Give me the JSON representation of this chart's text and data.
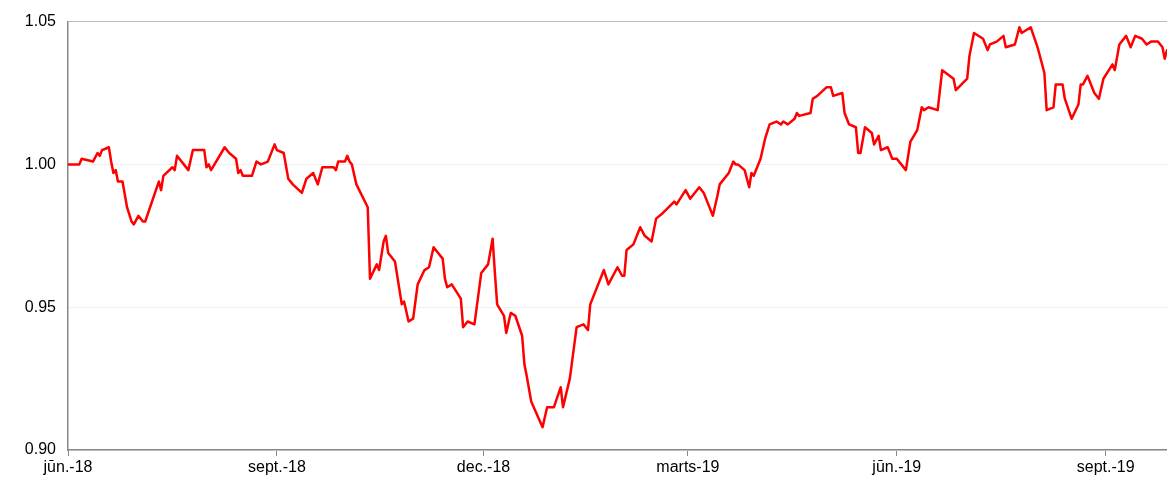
{
  "chart_data": {
    "type": "line",
    "marker": "none",
    "grid": "y",
    "xlim": [
      "2018-06-01",
      "2019-09-28"
    ],
    "xticks": [
      {
        "value": "2018-06-01",
        "label": "jūn.-18"
      },
      {
        "value": "2018-09-01",
        "label": "sept.-18"
      },
      {
        "value": "2018-12-01",
        "label": "dec.-18"
      },
      {
        "value": "2019-03-01",
        "label": "marts-19"
      },
      {
        "value": "2019-06-01",
        "label": "jūn.-19"
      },
      {
        "value": "2019-09-01",
        "label": "sept.-19"
      }
    ],
    "ylim": [
      0.9,
      1.05
    ],
    "yticks": [
      {
        "value": 0.9,
        "label": "0.90"
      },
      {
        "value": 0.95,
        "label": "0.95"
      },
      {
        "value": 1.0,
        "label": "1.00"
      },
      {
        "value": 1.05,
        "label": "1.05"
      }
    ],
    "x": [
      "2018-06-01",
      "2018-06-06",
      "2018-06-07",
      "2018-06-12",
      "2018-06-14",
      "2018-06-15",
      "2018-06-16",
      "2018-06-19",
      "2018-06-20",
      "2018-06-21",
      "2018-06-22",
      "2018-06-23",
      "2018-06-25",
      "2018-06-27",
      "2018-06-29",
      "2018-06-30",
      "2018-07-02",
      "2018-07-04",
      "2018-07-05",
      "2018-07-11",
      "2018-07-12",
      "2018-07-13",
      "2018-07-17",
      "2018-07-18",
      "2018-07-19",
      "2018-07-22",
      "2018-07-24",
      "2018-07-26",
      "2018-07-31",
      "2018-08-01",
      "2018-08-02",
      "2018-08-03",
      "2018-08-09",
      "2018-08-11",
      "2018-08-14",
      "2018-08-15",
      "2018-08-16",
      "2018-08-17",
      "2018-08-21",
      "2018-08-23",
      "2018-08-25",
      "2018-08-28",
      "2018-08-31",
      "2018-09-01",
      "2018-09-04",
      "2018-09-06",
      "2018-09-08",
      "2018-09-12",
      "2018-09-14",
      "2018-09-17",
      "2018-09-19",
      "2018-09-21",
      "2018-09-26",
      "2018-09-27",
      "2018-09-28",
      "2018-10-01",
      "2018-10-02",
      "2018-10-03",
      "2018-10-04",
      "2018-10-06",
      "2018-10-11",
      "2018-10-12",
      "2018-10-15",
      "2018-10-16",
      "2018-10-18",
      "2018-10-19",
      "2018-10-20",
      "2018-10-23",
      "2018-10-26",
      "2018-10-27",
      "2018-10-29",
      "2018-10-31",
      "2018-11-02",
      "2018-11-05",
      "2018-11-07",
      "2018-11-09",
      "2018-11-13",
      "2018-11-14",
      "2018-11-15",
      "2018-11-17",
      "2018-11-21",
      "2018-11-22",
      "2018-11-24",
      "2018-11-27",
      "2018-11-28",
      "2018-11-30",
      "2018-12-03",
      "2018-12-05",
      "2018-12-06",
      "2018-12-07",
      "2018-12-10",
      "2018-12-11",
      "2018-12-13",
      "2018-12-15",
      "2018-12-18",
      "2018-12-19",
      "2018-12-20",
      "2018-12-22",
      "2018-12-27",
      "2018-12-29",
      "2019-01-01",
      "2019-01-04",
      "2019-01-05",
      "2019-01-08",
      "2019-01-11",
      "2019-01-14",
      "2019-01-16",
      "2019-01-17",
      "2019-01-23",
      "2019-01-25",
      "2019-01-29",
      "2019-01-31",
      "2019-02-01",
      "2019-02-02",
      "2019-02-05",
      "2019-02-08",
      "2019-02-10",
      "2019-02-13",
      "2019-02-15",
      "2019-02-18",
      "2019-02-23",
      "2019-02-24",
      "2019-02-28",
      "2019-03-02",
      "2019-03-06",
      "2019-03-08",
      "2019-03-10",
      "2019-03-12",
      "2019-03-14",
      "2019-03-15",
      "2019-03-19",
      "2019-03-21",
      "2019-03-22",
      "2019-03-23",
      "2019-03-26",
      "2019-03-28",
      "2019-03-29",
      "2019-03-30",
      "2019-04-02",
      "2019-04-04",
      "2019-04-06",
      "2019-04-09",
      "2019-04-11",
      "2019-04-12",
      "2019-04-14",
      "2019-04-17",
      "2019-04-18",
      "2019-04-19",
      "2019-04-24",
      "2019-04-25",
      "2019-04-27",
      "2019-05-01",
      "2019-05-03",
      "2019-05-04",
      "2019-05-08",
      "2019-05-09",
      "2019-05-11",
      "2019-05-14",
      "2019-05-15",
      "2019-05-16",
      "2019-05-18",
      "2019-05-21",
      "2019-05-22",
      "2019-05-24",
      "2019-05-25",
      "2019-05-28",
      "2019-05-30",
      "2019-06-01",
      "2019-06-05",
      "2019-06-07",
      "2019-06-10",
      "2019-06-12",
      "2019-06-13",
      "2019-06-15",
      "2019-06-19",
      "2019-06-21",
      "2019-06-26",
      "2019-06-27",
      "2019-07-02",
      "2019-07-03",
      "2019-07-05",
      "2019-07-09",
      "2019-07-11",
      "2019-07-12",
      "2019-07-15",
      "2019-07-18",
      "2019-07-19",
      "2019-07-23",
      "2019-07-25",
      "2019-07-26",
      "2019-07-30",
      "2019-08-02",
      "2019-08-05",
      "2019-08-06",
      "2019-08-09",
      "2019-08-10",
      "2019-08-13",
      "2019-08-14",
      "2019-08-17",
      "2019-08-20",
      "2019-08-21",
      "2019-08-22",
      "2019-08-24",
      "2019-08-27",
      "2019-08-29",
      "2019-08-31",
      "2019-09-04",
      "2019-09-05",
      "2019-09-07",
      "2019-09-10",
      "2019-09-12",
      "2019-09-14",
      "2019-09-17",
      "2019-09-19",
      "2019-09-21",
      "2019-09-24",
      "2019-09-26",
      "2019-09-27",
      "2019-09-28"
    ],
    "series": [
      {
        "color": "#ff0000",
        "values": [
          1.0,
          1.0,
          1.002,
          1.001,
          1.004,
          1.003,
          1.005,
          1.006,
          1.001,
          0.997,
          0.998,
          0.994,
          0.994,
          0.985,
          0.98,
          0.979,
          0.982,
          0.98,
          0.98,
          0.994,
          0.991,
          0.996,
          0.999,
          0.998,
          1.003,
          1.0,
          0.998,
          1.005,
          1.005,
          0.999,
          1.0,
          0.998,
          1.006,
          1.004,
          1.002,
          0.997,
          0.998,
          0.996,
          0.996,
          1.001,
          1.0,
          1.001,
          1.007,
          1.005,
          1.004,
          0.995,
          0.993,
          0.99,
          0.995,
          0.997,
          0.993,
          0.999,
          0.999,
          0.998,
          1.001,
          1.001,
          1.003,
          1.001,
          1.0,
          0.993,
          0.985,
          0.96,
          0.965,
          0.963,
          0.973,
          0.975,
          0.969,
          0.966,
          0.951,
          0.952,
          0.945,
          0.946,
          0.958,
          0.963,
          0.964,
          0.971,
          0.967,
          0.96,
          0.957,
          0.958,
          0.953,
          0.943,
          0.945,
          0.944,
          0.95,
          0.962,
          0.965,
          0.974,
          0.962,
          0.951,
          0.947,
          0.941,
          0.948,
          0.947,
          0.94,
          0.93,
          0.926,
          0.917,
          0.908,
          0.915,
          0.915,
          0.922,
          0.915,
          0.925,
          0.943,
          0.944,
          0.942,
          0.951,
          0.963,
          0.958,
          0.964,
          0.961,
          0.961,
          0.97,
          0.972,
          0.978,
          0.975,
          0.973,
          0.981,
          0.983,
          0.987,
          0.986,
          0.991,
          0.988,
          0.992,
          0.99,
          0.986,
          0.982,
          0.989,
          0.993,
          0.997,
          1.001,
          1.0,
          1.0,
          0.998,
          0.992,
          0.997,
          0.996,
          1.002,
          1.009,
          1.014,
          1.015,
          1.014,
          1.015,
          1.014,
          1.016,
          1.018,
          1.017,
          1.018,
          1.023,
          1.024,
          1.027,
          1.027,
          1.024,
          1.025,
          1.018,
          1.014,
          1.013,
          1.004,
          1.004,
          1.013,
          1.011,
          1.007,
          1.01,
          1.005,
          1.006,
          1.002,
          1.002,
          0.998,
          1.008,
          1.012,
          1.02,
          1.019,
          1.02,
          1.019,
          1.033,
          1.03,
          1.026,
          1.03,
          1.038,
          1.046,
          1.044,
          1.04,
          1.042,
          1.043,
          1.045,
          1.041,
          1.042,
          1.048,
          1.046,
          1.048,
          1.041,
          1.032,
          1.019,
          1.02,
          1.028,
          1.028,
          1.023,
          1.016,
          1.021,
          1.028,
          1.028,
          1.031,
          1.025,
          1.023,
          1.03,
          1.035,
          1.033,
          1.042,
          1.045,
          1.041,
          1.045,
          1.044,
          1.042,
          1.043,
          1.043,
          1.041,
          1.037,
          1.04
        ]
      }
    ]
  }
}
